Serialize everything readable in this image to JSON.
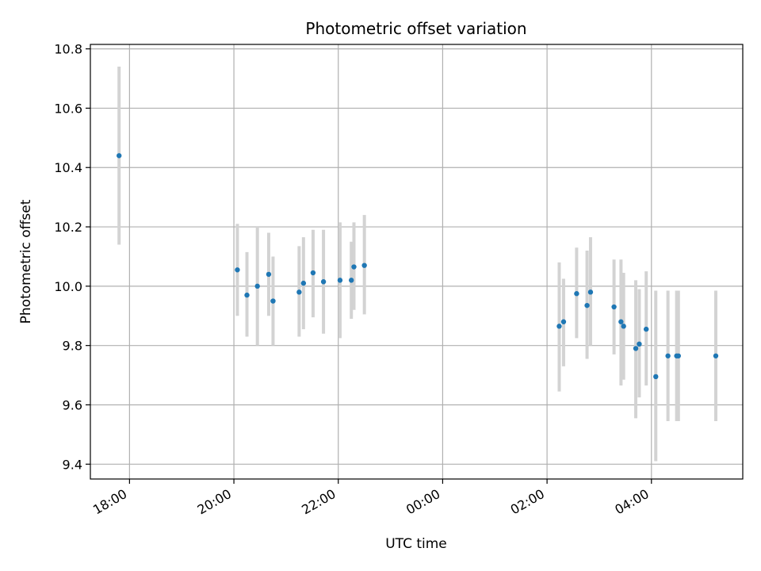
{
  "chart_data": {
    "type": "scatter",
    "title": "Photometric offset variation",
    "xlabel": "UTC time",
    "ylabel": "Photometric offset",
    "x_axis_type": "time",
    "x_range": [
      "17:15",
      "05:45"
    ],
    "ylim": [
      9.35,
      10.815
    ],
    "x_ticks": [
      "18:00",
      "20:00",
      "22:00",
      "00:00",
      "02:00",
      "04:00"
    ],
    "y_ticks": [
      9.4,
      9.6,
      9.8,
      10.0,
      10.2,
      10.4,
      10.6,
      10.8
    ],
    "grid": true,
    "point_color": "#1f77b4",
    "errorbar_color": "#d3d3d3",
    "points": [
      {
        "x": "17:48",
        "y": 10.44,
        "low": 10.14,
        "high": 10.74
      },
      {
        "x": "20:04",
        "y": 10.055,
        "low": 9.9,
        "high": 10.21
      },
      {
        "x": "20:15",
        "y": 9.97,
        "low": 9.83,
        "high": 10.115
      },
      {
        "x": "20:27",
        "y": 10.0,
        "low": 9.8,
        "high": 10.2
      },
      {
        "x": "20:40",
        "y": 10.04,
        "low": 9.9,
        "high": 10.18
      },
      {
        "x": "20:45",
        "y": 9.95,
        "low": 9.8,
        "high": 10.1
      },
      {
        "x": "21:15",
        "y": 9.98,
        "low": 9.83,
        "high": 10.135
      },
      {
        "x": "21:20",
        "y": 10.01,
        "low": 9.855,
        "high": 10.165
      },
      {
        "x": "21:31",
        "y": 10.045,
        "low": 9.895,
        "high": 10.19
      },
      {
        "x": "21:43",
        "y": 10.015,
        "low": 9.84,
        "high": 10.19
      },
      {
        "x": "22:02",
        "y": 10.02,
        "low": 9.825,
        "high": 10.215
      },
      {
        "x": "22:15",
        "y": 10.02,
        "low": 9.89,
        "high": 10.15
      },
      {
        "x": "22:18",
        "y": 10.065,
        "low": 9.92,
        "high": 10.215
      },
      {
        "x": "22:30",
        "y": 10.07,
        "low": 9.905,
        "high": 10.24
      },
      {
        "x": "02:14",
        "y": 9.865,
        "low": 9.645,
        "high": 10.08
      },
      {
        "x": "02:19",
        "y": 9.88,
        "low": 9.73,
        "high": 10.025
      },
      {
        "x": "02:34",
        "y": 9.975,
        "low": 9.825,
        "high": 10.13
      },
      {
        "x": "02:46",
        "y": 9.935,
        "low": 9.755,
        "high": 10.12
      },
      {
        "x": "02:50",
        "y": 9.98,
        "low": 9.8,
        "high": 10.165
      },
      {
        "x": "03:17",
        "y": 9.93,
        "low": 9.77,
        "high": 10.09
      },
      {
        "x": "03:25",
        "y": 9.88,
        "low": 9.665,
        "high": 10.09
      },
      {
        "x": "03:28",
        "y": 9.865,
        "low": 9.685,
        "high": 10.045
      },
      {
        "x": "03:42",
        "y": 9.79,
        "low": 9.555,
        "high": 10.02
      },
      {
        "x": "03:46",
        "y": 9.805,
        "low": 9.625,
        "high": 9.99
      },
      {
        "x": "03:54",
        "y": 9.855,
        "low": 9.665,
        "high": 10.05
      },
      {
        "x": "04:05",
        "y": 9.695,
        "low": 9.41,
        "high": 9.985
      },
      {
        "x": "04:19",
        "y": 9.765,
        "low": 9.545,
        "high": 9.985
      },
      {
        "x": "04:29",
        "y": 9.765,
        "low": 9.545,
        "high": 9.985
      },
      {
        "x": "04:31",
        "y": 9.765,
        "low": 9.545,
        "high": 9.985
      },
      {
        "x": "05:14",
        "y": 9.765,
        "low": 9.545,
        "high": 9.985
      }
    ]
  }
}
